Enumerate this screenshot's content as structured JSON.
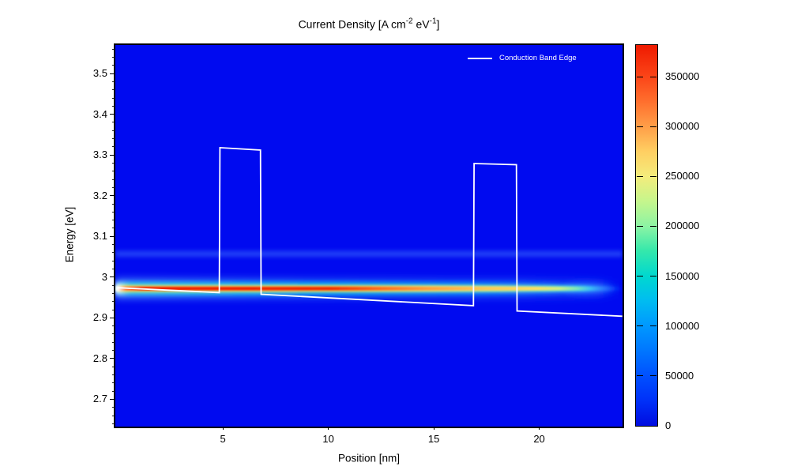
{
  "title": {
    "pre": "Current Density [A cm",
    "sup1": "-2",
    "mid": " eV",
    "sup2": "-1",
    "post": "]",
    "full": "Current Density [A cm-2 eV-1]"
  },
  "legend": {
    "label": "Conduction Band Edge",
    "line_color": "#ffffff"
  },
  "axes": {
    "x": {
      "label": "Position [nm]",
      "ticks": [
        5,
        10,
        15,
        20
      ],
      "range": [
        -0.1,
        23.95
      ]
    },
    "y": {
      "label": "Energy [eV]",
      "ticks": [
        2.7,
        2.8,
        2.9,
        3,
        3.1,
        3.2,
        3.3,
        3.4,
        3.5
      ],
      "minor_step": 0.02,
      "range": [
        2.633,
        3.57
      ]
    }
  },
  "colorbar": {
    "ticks": [
      0,
      50000,
      100000,
      150000,
      200000,
      250000,
      300000,
      350000
    ],
    "min": 0,
    "max": 381750,
    "gradient_stops": [
      [
        0.0,
        "#000ce0"
      ],
      [
        0.065,
        "#0030f8"
      ],
      [
        0.131,
        "#0050ff"
      ],
      [
        0.2,
        "#0078ff"
      ],
      [
        0.262,
        "#0098ff"
      ],
      [
        0.33,
        "#00bdf0"
      ],
      [
        0.393,
        "#00d8cf"
      ],
      [
        0.46,
        "#35e8ab"
      ],
      [
        0.524,
        "#8cf4a4"
      ],
      [
        0.59,
        "#c6f68c"
      ],
      [
        0.655,
        "#f4ec7c"
      ],
      [
        0.72,
        "#ffcf62"
      ],
      [
        0.786,
        "#ff9e48"
      ],
      [
        0.85,
        "#ff702e"
      ],
      [
        0.917,
        "#fb4518"
      ],
      [
        1.0,
        "#ef1a00"
      ]
    ]
  },
  "colors": {
    "plot_background": "#000af0",
    "band_edge_line": "#ffffff",
    "frame": "#000000",
    "text": "#000000"
  },
  "render": {
    "streak_center_energy_eV": 2.972,
    "stripe_center_energy_eV": 3.057,
    "core_stops": [
      [
        0.0,
        "#d8ffff"
      ],
      [
        0.005,
        "#ffffff"
      ],
      [
        0.02,
        "#ff7040"
      ],
      [
        0.05,
        "#f01c00"
      ],
      [
        0.42,
        "#ee2a00"
      ],
      [
        0.52,
        "#fb6a1e"
      ],
      [
        0.62,
        "#ff9f3e"
      ],
      [
        0.73,
        "#ffc854"
      ],
      [
        0.83,
        "#ffde60"
      ],
      [
        0.875,
        "#cfef82"
      ],
      [
        0.91,
        "#7be6b9"
      ],
      [
        0.935,
        "#3ec2f2"
      ],
      [
        0.965,
        "rgba(45,125,255,0.6)"
      ],
      [
        1.0,
        "rgba(0,60,255,0)"
      ]
    ],
    "mid_stops": [
      [
        0.0,
        "rgba(255,255,255,0.95)"
      ],
      [
        0.02,
        "#ffd84e"
      ],
      [
        0.45,
        "#ffdd52"
      ],
      [
        0.62,
        "#e4ef74"
      ],
      [
        0.76,
        "#a8eda2"
      ],
      [
        0.86,
        "#62dcd2"
      ],
      [
        0.925,
        "#36b2f8"
      ],
      [
        0.97,
        "rgba(40,115,255,0.45)"
      ],
      [
        1.0,
        "rgba(0,60,255,0)"
      ]
    ],
    "outer_stops": [
      [
        0.0,
        "rgba(210,255,255,0.9)"
      ],
      [
        0.03,
        "rgba(40,225,235,0.85)"
      ],
      [
        0.45,
        "rgba(0,220,245,0.72)"
      ],
      [
        0.7,
        "rgba(0,200,255,0.6)"
      ],
      [
        0.85,
        "rgba(30,160,255,0.5)"
      ],
      [
        0.95,
        "rgba(30,100,255,0.3)"
      ],
      [
        1.0,
        "rgba(0,60,255,0)"
      ]
    ],
    "glow_stops": [
      [
        0.0,
        "rgba(120,220,255,0.5)"
      ],
      [
        0.4,
        "rgba(60,160,255,0.42)"
      ],
      [
        0.8,
        "rgba(50,130,255,0.35)"
      ],
      [
        0.95,
        "rgba(40,100,255,0.2)"
      ],
      [
        1.0,
        "rgba(0,60,255,0)"
      ]
    ]
  },
  "chart_data": {
    "type": "heatmap",
    "title": "Current Density [A cm^-2 eV^-1]",
    "xlabel": "Position [nm]",
    "ylabel": "Energy [eV]",
    "xlim": [
      -0.1,
      23.95
    ],
    "ylim": [
      2.633,
      3.57
    ],
    "x_ticks": [
      5,
      10,
      15,
      20
    ],
    "y_ticks": [
      2.7,
      2.8,
      2.9,
      3,
      3.1,
      3.2,
      3.3,
      3.4,
      3.5
    ],
    "grid": false,
    "legend_position": "top-right",
    "background_value": 0,
    "colorbar": {
      "min": 0,
      "max": 381750,
      "tick_step": 50000,
      "ticks": [
        0,
        50000,
        100000,
        150000,
        200000,
        250000,
        300000,
        350000
      ]
    },
    "series": [
      {
        "name": "Conduction Band Edge",
        "type": "line",
        "color": "#ffffff",
        "points_x_nm_y_eV": [
          [
            0.0,
            2.974
          ],
          [
            4.83,
            2.962
          ],
          [
            4.86,
            3.318
          ],
          [
            6.78,
            3.312
          ],
          [
            6.81,
            2.958
          ],
          [
            16.88,
            2.93
          ],
          [
            16.91,
            3.279
          ],
          [
            18.92,
            3.276
          ],
          [
            18.95,
            2.917
          ],
          [
            23.94,
            2.904
          ]
        ],
        "barriers": [
          {
            "from_nm": 4.86,
            "to_nm": 6.78,
            "top_eV": 3.315
          },
          {
            "from_nm": 16.91,
            "to_nm": 18.92,
            "top_eV": 3.278
          }
        ]
      },
      {
        "name": "Resonant current density ridge",
        "type": "heatmap-ridge",
        "energy_eV": 2.972,
        "approx_peak_profile_x_nm_value": [
          [
            0.0,
            200000
          ],
          [
            0.4,
            380000
          ],
          [
            5,
            375000
          ],
          [
            10,
            360000
          ],
          [
            13,
            305000
          ],
          [
            17.5,
            252000
          ],
          [
            20,
            215000
          ],
          [
            21.5,
            160000
          ],
          [
            22.6,
            90000
          ],
          [
            23.5,
            30000
          ],
          [
            23.95,
            5000
          ]
        ]
      },
      {
        "name": "Secondary faint ridge",
        "type": "heatmap-ridge",
        "energy_eV": 3.057,
        "approx_peak_value": 18000
      }
    ]
  }
}
